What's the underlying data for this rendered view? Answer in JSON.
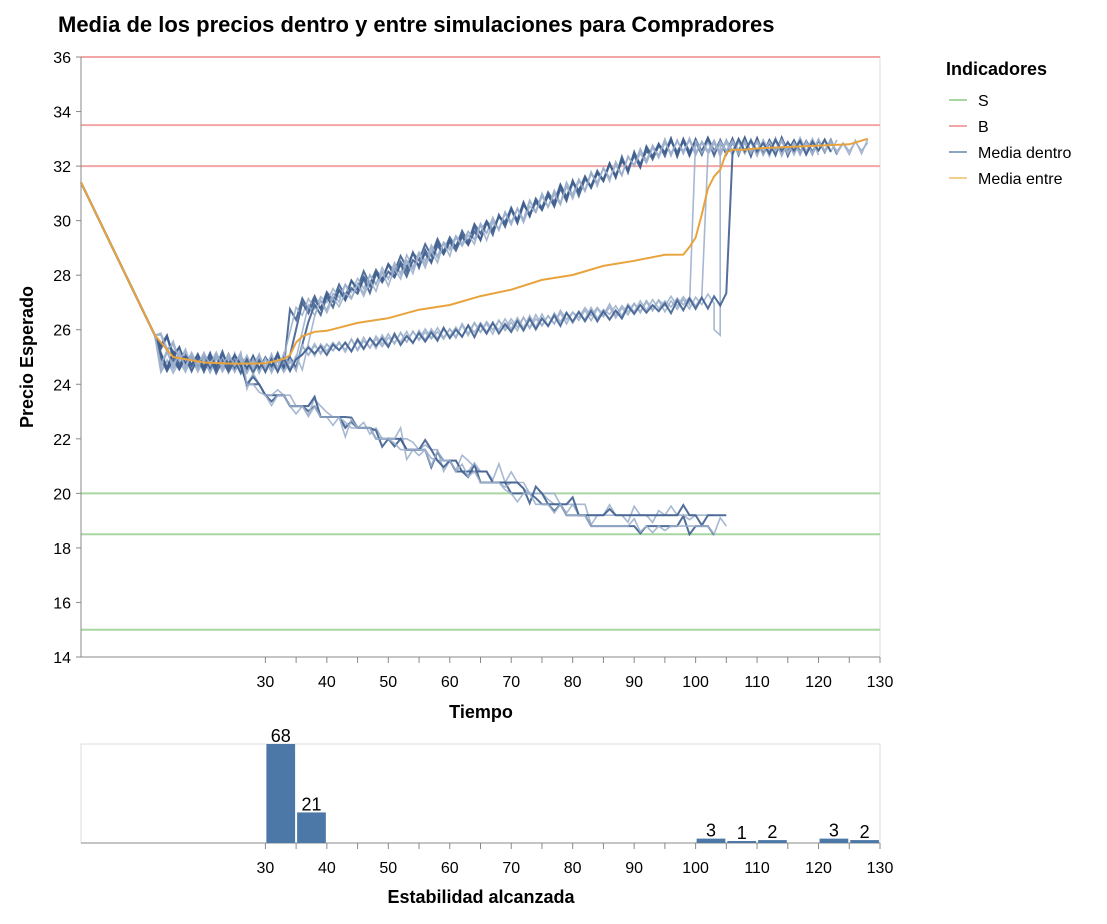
{
  "chart_data": [
    {
      "type": "line",
      "title": "Media de los precios dentro y entre simulaciones para Compradores",
      "xlabel": "Tiempo",
      "ylabel": "Precio Esperado",
      "xlim": [
        0,
        130
      ],
      "ylim": [
        14,
        36
      ],
      "x_ticks": [
        30,
        40,
        50,
        60,
        70,
        80,
        90,
        100,
        110,
        120,
        130
      ],
      "y_ticks": [
        14,
        16,
        18,
        20,
        22,
        24,
        26,
        28,
        30,
        32,
        34,
        36
      ],
      "grid": false,
      "legend": {
        "title": "Indicadores",
        "placement": "right",
        "entries": [
          {
            "label": "S",
            "color": "#a8d5a2"
          },
          {
            "label": "B",
            "color": "#f2a6a6"
          },
          {
            "label": "Media dentro",
            "color": "#8fa3c2"
          },
          {
            "label": "Media entre",
            "color": "#f2cf8a"
          }
        ]
      },
      "reference_lines": {
        "S": [
          20,
          18.5,
          15
        ],
        "B": [
          36,
          33.5,
          32
        ]
      },
      "start": {
        "x": 0,
        "y": 31.4
      },
      "converge": {
        "x": 12,
        "y": 25.8
      },
      "media_entre": {
        "color": "#e8a33d",
        "x": [
          0,
          12,
          15,
          20,
          25,
          30,
          33,
          34,
          35,
          36,
          38,
          40,
          45,
          50,
          55,
          60,
          65,
          70,
          75,
          80,
          85,
          90,
          95,
          98,
          99,
          100,
          101,
          102,
          103,
          104,
          105,
          106,
          108,
          110,
          115,
          120,
          125,
          128
        ],
        "y": [
          31.4,
          25.8,
          25.0,
          24.8,
          24.75,
          24.8,
          24.9,
          25.1,
          25.5,
          25.8,
          25.9,
          26.0,
          26.2,
          26.45,
          26.7,
          26.95,
          27.2,
          27.5,
          27.8,
          28.05,
          28.3,
          28.55,
          28.7,
          28.8,
          29.0,
          29.4,
          30.2,
          31.2,
          31.6,
          31.9,
          32.5,
          32.6,
          32.6,
          32.65,
          32.7,
          32.75,
          32.8,
          33.0
        ]
      },
      "simulation_groups": [
        {
          "kind": "up",
          "count": 6,
          "end_x": 120,
          "end_y": 32.7,
          "rise_start_x": 34,
          "rise_start_y": 26.5
        },
        {
          "kind": "mid",
          "count": 4,
          "jump_x": [
            99,
            101,
            103,
            105
          ],
          "mid_end_y": 27.1,
          "end_x": 128,
          "end_y": 32.7
        },
        {
          "kind": "down",
          "count": 5,
          "end_x": [
            100,
            103,
            103,
            105,
            105
          ],
          "end_y": [
            19.2,
            18.8,
            19.0,
            19.0,
            18.8
          ]
        }
      ]
    },
    {
      "type": "bar",
      "xlabel": "Estabilidad alcanzada",
      "x_ticks": [
        30,
        40,
        50,
        60,
        70,
        80,
        90,
        100,
        110,
        120,
        130
      ],
      "bins": [
        {
          "start": 30,
          "end": 35,
          "count": 68
        },
        {
          "start": 35,
          "end": 40,
          "count": 21
        },
        {
          "start": 100,
          "end": 105,
          "count": 3
        },
        {
          "start": 105,
          "end": 110,
          "count": 1
        },
        {
          "start": 110,
          "end": 115,
          "count": 2
        },
        {
          "start": 120,
          "end": 125,
          "count": 3
        },
        {
          "start": 125,
          "end": 130,
          "count": 2
        }
      ],
      "ymax": 68,
      "bar_color": "#4c78a8"
    }
  ]
}
